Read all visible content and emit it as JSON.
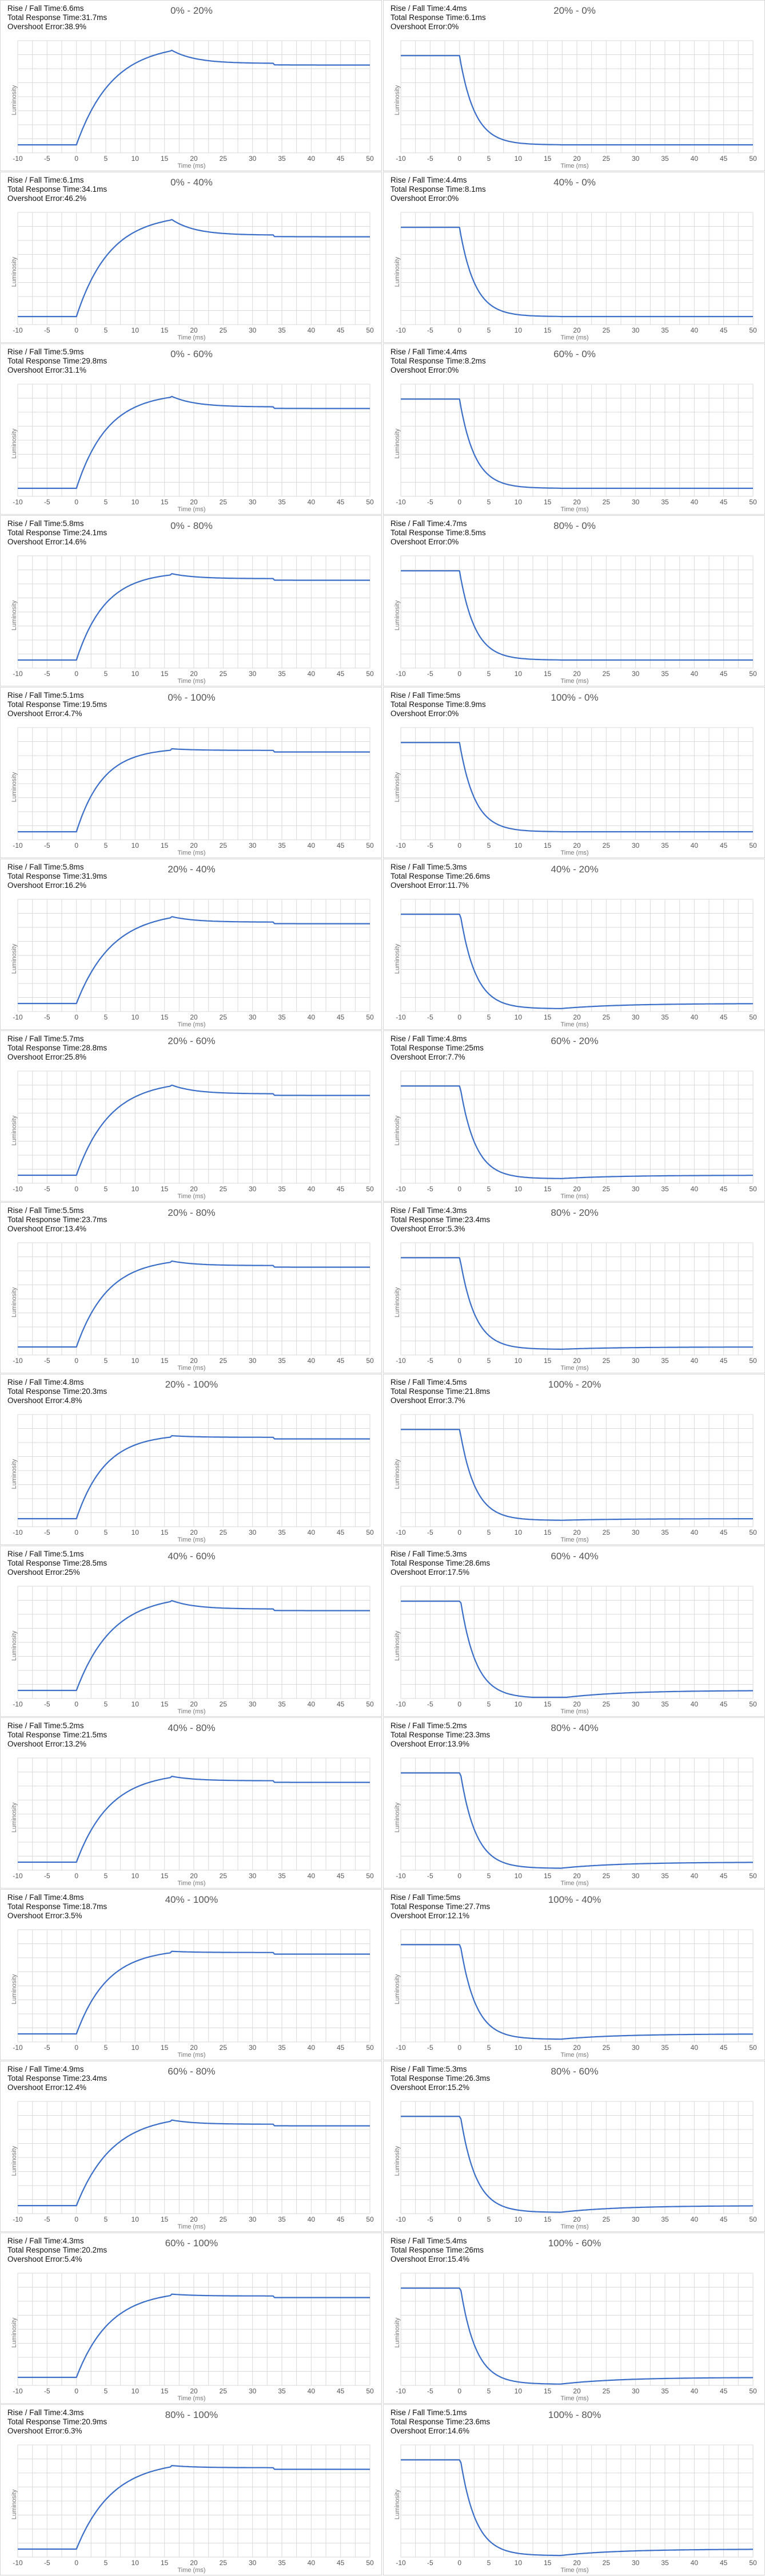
{
  "stat_labels": {
    "rise": "Rise / Fall Time:",
    "total": "Total Response Time:",
    "overshoot": "Overshoot Error:"
  },
  "colors": {
    "line": "#3A6EC8",
    "grid": "#DADADA",
    "frame": "#D6D6D6"
  },
  "chart_data": [
    {
      "type": "line",
      "title": "0% - 20%",
      "xlabel": "Time (ms)",
      "ylabel": "Luminosity",
      "xlim": [
        -10,
        50
      ],
      "x_ticks": [
        -10,
        -5,
        0,
        5,
        10,
        15,
        20,
        25,
        30,
        35,
        40,
        45,
        50
      ],
      "grid": true,
      "direction": "rise",
      "start": 0,
      "end": 20,
      "stats": {
        "rise": "6.6ms",
        "total": "31.7ms",
        "overshoot": "38.9%"
      }
    },
    {
      "type": "line",
      "title": "20% - 0%",
      "xlabel": "Time (ms)",
      "ylabel": "Luminosity",
      "xlim": [
        -10,
        50
      ],
      "x_ticks": [
        -10,
        -5,
        0,
        5,
        10,
        15,
        20,
        25,
        30,
        35,
        40,
        45,
        50
      ],
      "grid": true,
      "direction": "fall",
      "start": 20,
      "end": 0,
      "stats": {
        "rise": "4.4ms",
        "total": "6.1ms",
        "overshoot": "0%"
      }
    },
    {
      "type": "line",
      "title": "0% - 40%",
      "xlabel": "Time (ms)",
      "ylabel": "Luminosity",
      "xlim": [
        -10,
        50
      ],
      "x_ticks": [
        -10,
        -5,
        0,
        5,
        10,
        15,
        20,
        25,
        30,
        35,
        40,
        45,
        50
      ],
      "grid": true,
      "direction": "rise",
      "start": 0,
      "end": 40,
      "stats": {
        "rise": "6.1ms",
        "total": "34.1ms",
        "overshoot": "46.2%"
      }
    },
    {
      "type": "line",
      "title": "40% - 0%",
      "xlabel": "Time (ms)",
      "ylabel": "Luminosity",
      "xlim": [
        -10,
        50
      ],
      "x_ticks": [
        -10,
        -5,
        0,
        5,
        10,
        15,
        20,
        25,
        30,
        35,
        40,
        45,
        50
      ],
      "grid": true,
      "direction": "fall",
      "start": 40,
      "end": 0,
      "stats": {
        "rise": "4.4ms",
        "total": "8.1ms",
        "overshoot": "0%"
      }
    },
    {
      "type": "line",
      "title": "0% - 60%",
      "xlabel": "Time (ms)",
      "ylabel": "Luminosity",
      "xlim": [
        -10,
        50
      ],
      "x_ticks": [
        -10,
        -5,
        0,
        5,
        10,
        15,
        20,
        25,
        30,
        35,
        40,
        45,
        50
      ],
      "grid": true,
      "direction": "rise",
      "start": 0,
      "end": 60,
      "stats": {
        "rise": "5.9ms",
        "total": "29.8ms",
        "overshoot": "31.1%"
      }
    },
    {
      "type": "line",
      "title": "60% - 0%",
      "xlabel": "Time (ms)",
      "ylabel": "Luminosity",
      "xlim": [
        -10,
        50
      ],
      "x_ticks": [
        -10,
        -5,
        0,
        5,
        10,
        15,
        20,
        25,
        30,
        35,
        40,
        45,
        50
      ],
      "grid": true,
      "direction": "fall",
      "start": 60,
      "end": 0,
      "stats": {
        "rise": "4.4ms",
        "total": "8.2ms",
        "overshoot": "0%"
      }
    },
    {
      "type": "line",
      "title": "0% - 80%",
      "xlabel": "Time (ms)",
      "ylabel": "Luminosity",
      "xlim": [
        -10,
        50
      ],
      "x_ticks": [
        -10,
        -5,
        0,
        5,
        10,
        15,
        20,
        25,
        30,
        35,
        40,
        45,
        50
      ],
      "grid": true,
      "direction": "rise",
      "start": 0,
      "end": 80,
      "stats": {
        "rise": "5.8ms",
        "total": "24.1ms",
        "overshoot": "14.6%"
      }
    },
    {
      "type": "line",
      "title": "80% - 0%",
      "xlabel": "Time (ms)",
      "ylabel": "Luminosity",
      "xlim": [
        -10,
        50
      ],
      "x_ticks": [
        -10,
        -5,
        0,
        5,
        10,
        15,
        20,
        25,
        30,
        35,
        40,
        45,
        50
      ],
      "grid": true,
      "direction": "fall",
      "start": 80,
      "end": 0,
      "stats": {
        "rise": "4.7ms",
        "total": "8.5ms",
        "overshoot": "0%"
      }
    },
    {
      "type": "line",
      "title": "0% - 100%",
      "xlabel": "Time (ms)",
      "ylabel": "Luminosity",
      "xlim": [
        -10,
        50
      ],
      "x_ticks": [
        -10,
        -5,
        0,
        5,
        10,
        15,
        20,
        25,
        30,
        35,
        40,
        45,
        50
      ],
      "grid": true,
      "direction": "rise",
      "start": 0,
      "end": 100,
      "stats": {
        "rise": "5.1ms",
        "total": "19.5ms",
        "overshoot": "4.7%"
      }
    },
    {
      "type": "line",
      "title": "100% - 0%",
      "xlabel": "Time (ms)",
      "ylabel": "Luminosity",
      "xlim": [
        -10,
        50
      ],
      "x_ticks": [
        -10,
        -5,
        0,
        5,
        10,
        15,
        20,
        25,
        30,
        35,
        40,
        45,
        50
      ],
      "grid": true,
      "direction": "fall",
      "start": 100,
      "end": 0,
      "stats": {
        "rise": "5ms",
        "total": "8.9ms",
        "overshoot": "0%"
      }
    },
    {
      "type": "line",
      "title": "20% - 40%",
      "xlabel": "Time (ms)",
      "ylabel": "Luminosity",
      "xlim": [
        -10,
        50
      ],
      "x_ticks": [
        -10,
        -5,
        0,
        5,
        10,
        15,
        20,
        25,
        30,
        35,
        40,
        45,
        50
      ],
      "grid": true,
      "direction": "rise",
      "start": 20,
      "end": 40,
      "stats": {
        "rise": "5.8ms",
        "total": "31.9ms",
        "overshoot": "16.2%"
      }
    },
    {
      "type": "line",
      "title": "40% - 20%",
      "xlabel": "Time (ms)",
      "ylabel": "Luminosity",
      "xlim": [
        -10,
        50
      ],
      "x_ticks": [
        -10,
        -5,
        0,
        5,
        10,
        15,
        20,
        25,
        30,
        35,
        40,
        45,
        50
      ],
      "grid": true,
      "direction": "fall",
      "start": 40,
      "end": 20,
      "stats": {
        "rise": "5.3ms",
        "total": "26.6ms",
        "overshoot": "11.7%"
      }
    },
    {
      "type": "line",
      "title": "20% - 60%",
      "xlabel": "Time (ms)",
      "ylabel": "Luminosity",
      "xlim": [
        -10,
        50
      ],
      "x_ticks": [
        -10,
        -5,
        0,
        5,
        10,
        15,
        20,
        25,
        30,
        35,
        40,
        45,
        50
      ],
      "grid": true,
      "direction": "rise",
      "start": 20,
      "end": 60,
      "stats": {
        "rise": "5.7ms",
        "total": "28.8ms",
        "overshoot": "25.8%"
      }
    },
    {
      "type": "line",
      "title": "60% - 20%",
      "xlabel": "Time (ms)",
      "ylabel": "Luminosity",
      "xlim": [
        -10,
        50
      ],
      "x_ticks": [
        -10,
        -5,
        0,
        5,
        10,
        15,
        20,
        25,
        30,
        35,
        40,
        45,
        50
      ],
      "grid": true,
      "direction": "fall",
      "start": 60,
      "end": 20,
      "stats": {
        "rise": "4.8ms",
        "total": "25ms",
        "overshoot": "7.7%"
      }
    },
    {
      "type": "line",
      "title": "20% - 80%",
      "xlabel": "Time (ms)",
      "ylabel": "Luminosity",
      "xlim": [
        -10,
        50
      ],
      "x_ticks": [
        -10,
        -5,
        0,
        5,
        10,
        15,
        20,
        25,
        30,
        35,
        40,
        45,
        50
      ],
      "grid": true,
      "direction": "rise",
      "start": 20,
      "end": 80,
      "stats": {
        "rise": "5.5ms",
        "total": "23.7ms",
        "overshoot": "13.4%"
      }
    },
    {
      "type": "line",
      "title": "80% - 20%",
      "xlabel": "Time (ms)",
      "ylabel": "Luminosity",
      "xlim": [
        -10,
        50
      ],
      "x_ticks": [
        -10,
        -5,
        0,
        5,
        10,
        15,
        20,
        25,
        30,
        35,
        40,
        45,
        50
      ],
      "grid": true,
      "direction": "fall",
      "start": 80,
      "end": 20,
      "stats": {
        "rise": "4.3ms",
        "total": "23.4ms",
        "overshoot": "5.3%"
      }
    },
    {
      "type": "line",
      "title": "20% - 100%",
      "xlabel": "Time (ms)",
      "ylabel": "Luminosity",
      "xlim": [
        -10,
        50
      ],
      "x_ticks": [
        -10,
        -5,
        0,
        5,
        10,
        15,
        20,
        25,
        30,
        35,
        40,
        45,
        50
      ],
      "grid": true,
      "direction": "rise",
      "start": 20,
      "end": 100,
      "stats": {
        "rise": "4.8ms",
        "total": "20.3ms",
        "overshoot": "4.8%"
      }
    },
    {
      "type": "line",
      "title": "100% - 20%",
      "xlabel": "Time (ms)",
      "ylabel": "Luminosity",
      "xlim": [
        -10,
        50
      ],
      "x_ticks": [
        -10,
        -5,
        0,
        5,
        10,
        15,
        20,
        25,
        30,
        35,
        40,
        45,
        50
      ],
      "grid": true,
      "direction": "fall",
      "start": 100,
      "end": 20,
      "stats": {
        "rise": "4.5ms",
        "total": "21.8ms",
        "overshoot": "3.7%"
      }
    },
    {
      "type": "line",
      "title": "40% - 60%",
      "xlabel": "Time (ms)",
      "ylabel": "Luminosity",
      "xlim": [
        -10,
        50
      ],
      "x_ticks": [
        -10,
        -5,
        0,
        5,
        10,
        15,
        20,
        25,
        30,
        35,
        40,
        45,
        50
      ],
      "grid": true,
      "direction": "rise",
      "start": 40,
      "end": 60,
      "stats": {
        "rise": "5.1ms",
        "total": "28.5ms",
        "overshoot": "25%"
      }
    },
    {
      "type": "line",
      "title": "60% - 40%",
      "xlabel": "Time (ms)",
      "ylabel": "Luminosity",
      "xlim": [
        -10,
        50
      ],
      "x_ticks": [
        -10,
        -5,
        0,
        5,
        10,
        15,
        20,
        25,
        30,
        35,
        40,
        45,
        50
      ],
      "grid": true,
      "direction": "fall",
      "start": 60,
      "end": 40,
      "stats": {
        "rise": "5.3ms",
        "total": "28.6ms",
        "overshoot": "17.5%"
      }
    },
    {
      "type": "line",
      "title": "40% - 80%",
      "xlabel": "Time (ms)",
      "ylabel": "Luminosity",
      "xlim": [
        -10,
        50
      ],
      "x_ticks": [
        -10,
        -5,
        0,
        5,
        10,
        15,
        20,
        25,
        30,
        35,
        40,
        45,
        50
      ],
      "grid": true,
      "direction": "rise",
      "start": 40,
      "end": 80,
      "stats": {
        "rise": "5.2ms",
        "total": "21.5ms",
        "overshoot": "13.2%"
      }
    },
    {
      "type": "line",
      "title": "80% - 40%",
      "xlabel": "Time (ms)",
      "ylabel": "Luminosity",
      "xlim": [
        -10,
        50
      ],
      "x_ticks": [
        -10,
        -5,
        0,
        5,
        10,
        15,
        20,
        25,
        30,
        35,
        40,
        45,
        50
      ],
      "grid": true,
      "direction": "fall",
      "start": 80,
      "end": 40,
      "stats": {
        "rise": "5.2ms",
        "total": "23.3ms",
        "overshoot": "13.9%"
      }
    },
    {
      "type": "line",
      "title": "40% - 100%",
      "xlabel": "Time (ms)",
      "ylabel": "Luminosity",
      "xlim": [
        -10,
        50
      ],
      "x_ticks": [
        -10,
        -5,
        0,
        5,
        10,
        15,
        20,
        25,
        30,
        35,
        40,
        45,
        50
      ],
      "grid": true,
      "direction": "rise",
      "start": 40,
      "end": 100,
      "stats": {
        "rise": "4.8ms",
        "total": "18.7ms",
        "overshoot": "3.5%"
      }
    },
    {
      "type": "line",
      "title": "100% - 40%",
      "xlabel": "Time (ms)",
      "ylabel": "Luminosity",
      "xlim": [
        -10,
        50
      ],
      "x_ticks": [
        -10,
        -5,
        0,
        5,
        10,
        15,
        20,
        25,
        30,
        35,
        40,
        45,
        50
      ],
      "grid": true,
      "direction": "fall",
      "start": 100,
      "end": 40,
      "stats": {
        "rise": "5ms",
        "total": "27.7ms",
        "overshoot": "12.1%"
      }
    },
    {
      "type": "line",
      "title": "60% - 80%",
      "xlabel": "Time (ms)",
      "ylabel": "Luminosity",
      "xlim": [
        -10,
        50
      ],
      "x_ticks": [
        -10,
        -5,
        0,
        5,
        10,
        15,
        20,
        25,
        30,
        35,
        40,
        45,
        50
      ],
      "grid": true,
      "direction": "rise",
      "start": 60,
      "end": 80,
      "stats": {
        "rise": "4.9ms",
        "total": "23.4ms",
        "overshoot": "12.4%"
      }
    },
    {
      "type": "line",
      "title": "80% - 60%",
      "xlabel": "Time (ms)",
      "ylabel": "Luminosity",
      "xlim": [
        -10,
        50
      ],
      "x_ticks": [
        -10,
        -5,
        0,
        5,
        10,
        15,
        20,
        25,
        30,
        35,
        40,
        45,
        50
      ],
      "grid": true,
      "direction": "fall",
      "start": 80,
      "end": 60,
      "stats": {
        "rise": "5.3ms",
        "total": "26.3ms",
        "overshoot": "15.2%"
      }
    },
    {
      "type": "line",
      "title": "60% - 100%",
      "xlabel": "Time (ms)",
      "ylabel": "Luminosity",
      "xlim": [
        -10,
        50
      ],
      "x_ticks": [
        -10,
        -5,
        0,
        5,
        10,
        15,
        20,
        25,
        30,
        35,
        40,
        45,
        50
      ],
      "grid": true,
      "direction": "rise",
      "start": 60,
      "end": 100,
      "stats": {
        "rise": "4.3ms",
        "total": "20.2ms",
        "overshoot": "5.4%"
      }
    },
    {
      "type": "line",
      "title": "100% - 60%",
      "xlabel": "Time (ms)",
      "ylabel": "Luminosity",
      "xlim": [
        -10,
        50
      ],
      "x_ticks": [
        -10,
        -5,
        0,
        5,
        10,
        15,
        20,
        25,
        30,
        35,
        40,
        45,
        50
      ],
      "grid": true,
      "direction": "fall",
      "start": 100,
      "end": 60,
      "stats": {
        "rise": "5.4ms",
        "total": "26ms",
        "overshoot": "15.4%"
      }
    },
    {
      "type": "line",
      "title": "80% - 100%",
      "xlabel": "Time (ms)",
      "ylabel": "Luminosity",
      "xlim": [
        -10,
        50
      ],
      "x_ticks": [
        -10,
        -5,
        0,
        5,
        10,
        15,
        20,
        25,
        30,
        35,
        40,
        45,
        50
      ],
      "grid": true,
      "direction": "rise",
      "start": 80,
      "end": 100,
      "stats": {
        "rise": "4.3ms",
        "total": "20.9ms",
        "overshoot": "6.3%"
      }
    },
    {
      "type": "line",
      "title": "100% - 80%",
      "xlabel": "Time (ms)",
      "ylabel": "Luminosity",
      "xlim": [
        -10,
        50
      ],
      "x_ticks": [
        -10,
        -5,
        0,
        5,
        10,
        15,
        20,
        25,
        30,
        35,
        40,
        45,
        50
      ],
      "grid": true,
      "direction": "fall",
      "start": 100,
      "end": 80,
      "stats": {
        "rise": "5.1ms",
        "total": "23.6ms",
        "overshoot": "14.6%"
      }
    }
  ]
}
